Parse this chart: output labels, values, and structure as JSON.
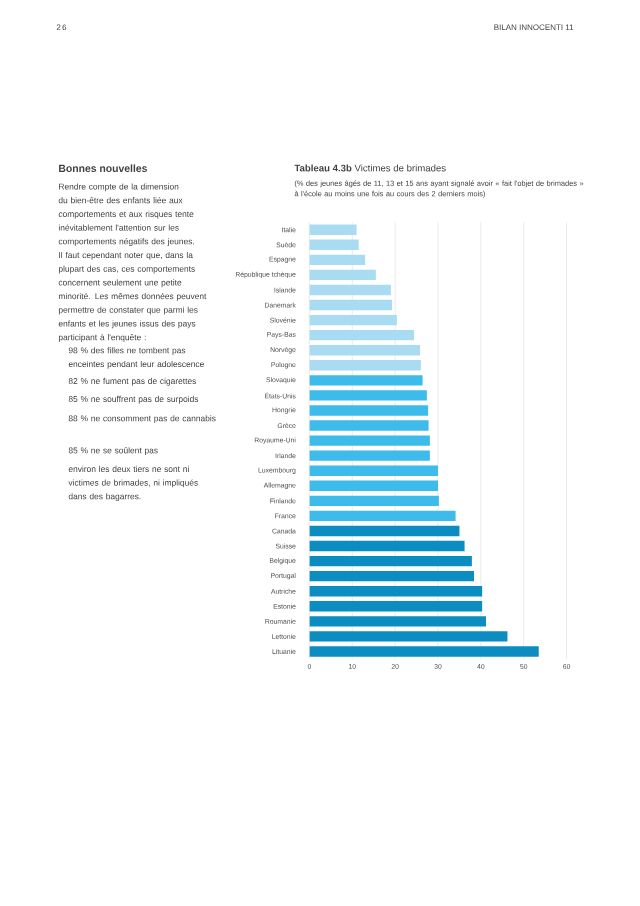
{
  "chart_data": {
    "type": "bar",
    "orientation": "horizontal",
    "title": "**Tableau 4.3b** Victimes de brimades",
    "subtitle": "(% des jeunes âgés de 11, 13 et 15 ans ayant signalé avoir « fait l'objet de brimades » à l'école au moins une fois au cours des 2 derniers mois)",
    "categories": [
      "Italie",
      "Suède",
      "Espagne",
      "République tchèque",
      "Islande",
      "Danemark",
      "Slovénie",
      "Pays-Bas",
      "Norvège",
      "Pologne",
      "Slovaquie",
      "États-Unis",
      "Hongrie",
      "Grèce",
      "Royaume-Uni",
      "Irlande",
      "Luxembourg",
      "Allemagne",
      "Finlande",
      "France",
      "Canada",
      "Suisse",
      "Belgique",
      "Portugal",
      "Autriche",
      "Estonie",
      "Roumanie",
      "Lettonie",
      "Lituanie"
    ],
    "values": [
      11,
      11.5,
      13,
      15.5,
      19,
      19.3,
      20.4,
      24.4,
      25.8,
      26,
      26.4,
      27.4,
      27.7,
      27.8,
      28.1,
      28.1,
      30,
      30,
      30.2,
      34.1,
      35,
      36.2,
      37.9,
      38.4,
      40.3,
      40.3,
      41.2,
      46.2,
      53.5
    ],
    "colors": [
      "#a9dbf3",
      "#a9dbf3",
      "#a9dbf3",
      "#a9dbf3",
      "#a9dbf3",
      "#a9dbf3",
      "#a9dbf3",
      "#a9dbf3",
      "#a9dbf3",
      "#a9dbf3",
      "#3dbbea",
      "#3dbbea",
      "#3dbbea",
      "#3dbbea",
      "#3dbbea",
      "#3dbbea",
      "#3dbbea",
      "#3dbbea",
      "#3dbbea",
      "#3dbbea",
      "#0b8dc2",
      "#0b8dc2",
      "#0b8dc2",
      "#0b8dc2",
      "#0b8dc2",
      "#0b8dc2",
      "#0b8dc2",
      "#0b8dc2",
      "#0b8dc2"
    ],
    "xlim": [
      0,
      60
    ],
    "xticks": [
      0,
      10,
      20,
      30,
      40,
      50,
      60
    ],
    "grid": "x",
    "annotations": [
      "26",
      "BILAN INNOCENTI 11",
      "Bonnes nouvelles",
      "Rendre compte de la dimension du bien-être des enfants liée aux comportements et aux risques tente inévitablement l'attention sur les comportements négatifs des jeunes. Il faut cependant noter que, dans la plupart des cas, ces comportements concernent seulement une petite minorité. Les mêmes données peuvent permettre de constater que parmi les enfants et les jeunes issus des pays participant à l'enquête :",
      "98 % des filles ne tombent pas enceintes pendant leur adolescence",
      "82 % ne fument pas de cigarettes",
      "85 % ne souffrent pas de surpoids",
      "88 % ne consomment pas de cannabis",
      "85 % ne se soûlent pas",
      "environ les deux tiers ne sont ni victimes de brimades, ni impliqués dans des bagarres."
    ]
  }
}
